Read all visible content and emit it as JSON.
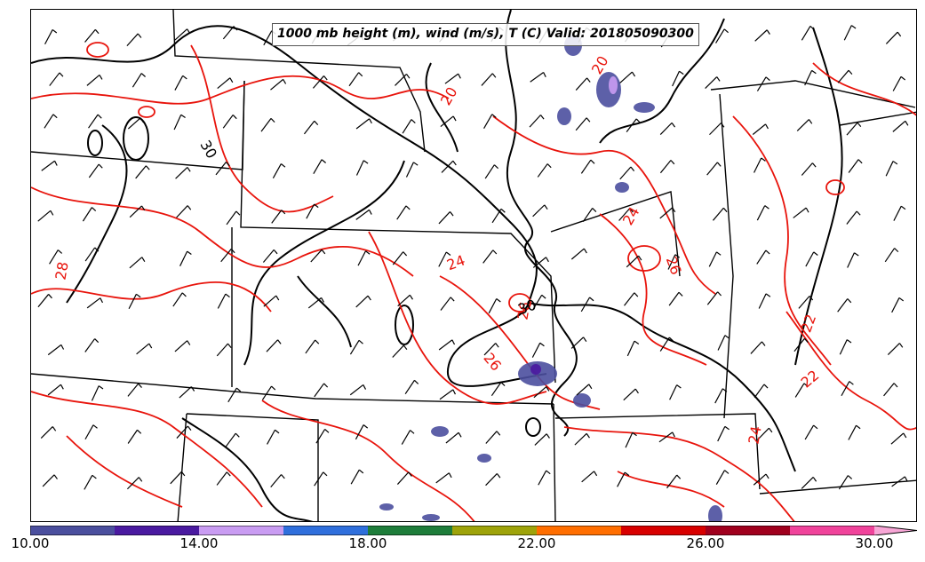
{
  "title": "1000 mb height (m), wind (m/s), T (C) Valid: 201805090300",
  "colorbar": {
    "colors": [
      "#4b4f9e",
      "#4a1aa0",
      "#c99cf2",
      "#2f6fdc",
      "#1e7d3a",
      "#9ea30a",
      "#ff6e00",
      "#d80000",
      "#a0001e",
      "#f0439b",
      "#f7a6d6"
    ],
    "tick_labels": [
      "10.00",
      "14.00",
      "18.00",
      "22.00",
      "26.00",
      "30.00"
    ]
  },
  "temperature_contour_labels": [
    "20",
    "20",
    "24",
    "24",
    "26",
    "26",
    "22",
    "22",
    "24",
    "28",
    "26"
  ],
  "height_contour_labels": [
    "30",
    "30"
  ],
  "colors": {
    "height_contour": "#000000",
    "temperature_contour": "#e8140c",
    "state_border": "#000000",
    "shading_low": "#4b4f9e"
  }
}
